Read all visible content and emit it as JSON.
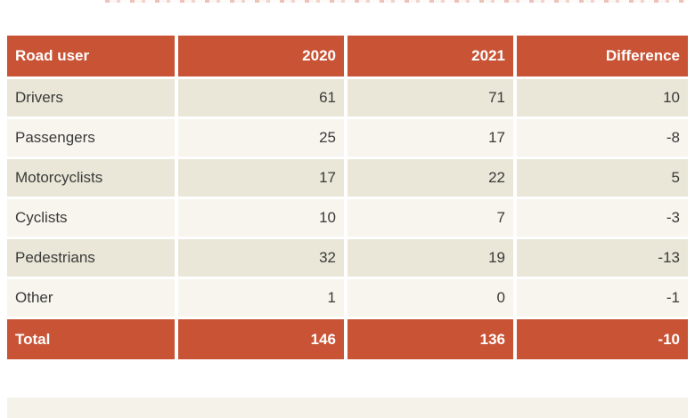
{
  "colors": {
    "accent": "#c95335",
    "row_dark_beige": "#eae7d8",
    "row_light_beige": "#f7f5ee",
    "bottom_band": "#f5f2ea",
    "body_text": "#3a3a3a",
    "header_text": "#ffffff"
  },
  "table": {
    "header": [
      "Road user",
      "2020",
      "2021",
      "Difference"
    ],
    "rows": [
      [
        "Drivers",
        "61",
        "71",
        "10"
      ],
      [
        "Passengers",
        "25",
        "17",
        "-8"
      ],
      [
        "Motorcyclists",
        "17",
        "22",
        "5"
      ],
      [
        "Cyclists",
        "10",
        "7",
        "-3"
      ],
      [
        "Pedestrians",
        "32",
        "19",
        "-13"
      ],
      [
        "Other",
        "1",
        "0",
        "-1"
      ]
    ],
    "total": [
      "Total",
      "146",
      "136",
      "-10"
    ]
  },
  "chart_data": {
    "type": "table",
    "title": "",
    "columns": [
      "Road user",
      "2020",
      "2021",
      "Difference"
    ],
    "rows": [
      [
        "Drivers",
        61,
        71,
        10
      ],
      [
        "Passengers",
        25,
        17,
        -8
      ],
      [
        "Motorcyclists",
        17,
        22,
        5
      ],
      [
        "Cyclists",
        10,
        7,
        -3
      ],
      [
        "Pedestrians",
        32,
        19,
        -13
      ],
      [
        "Other",
        1,
        0,
        -1
      ],
      [
        "Total",
        146,
        136,
        -10
      ]
    ],
    "layout_hints": {
      "header_row_highlight": true,
      "total_row_highlight": true,
      "zebra_striping": true,
      "numeric_columns_right_aligned": true
    }
  }
}
